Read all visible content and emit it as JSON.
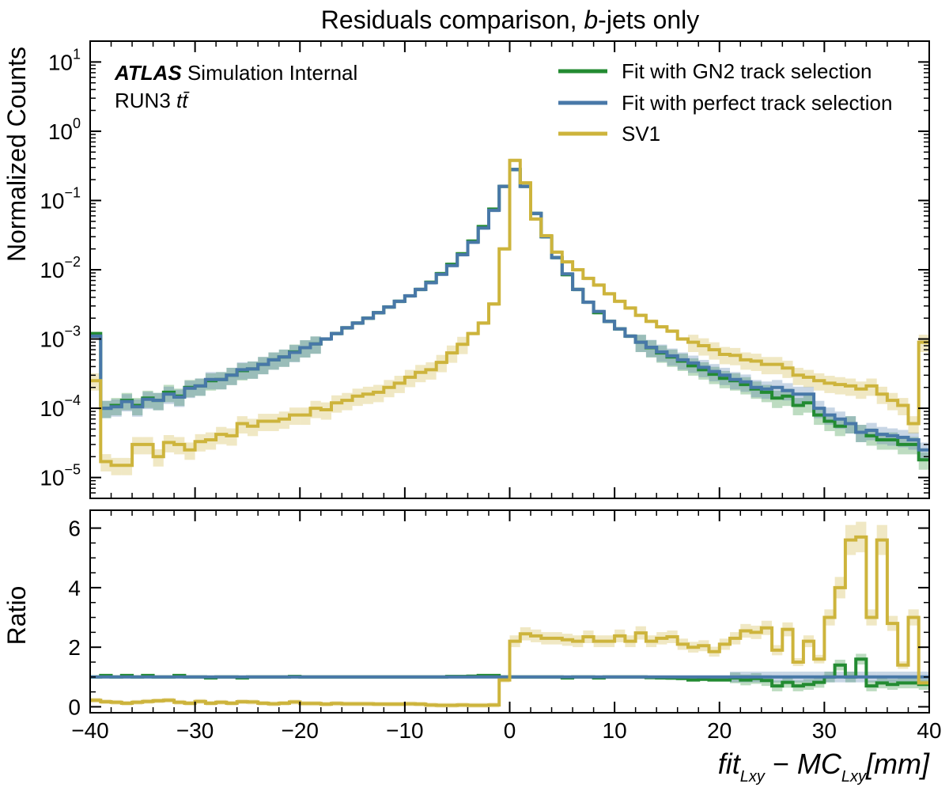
{
  "chart_data": {
    "type": "line",
    "title_parts": {
      "pre": "Residuals comparison, ",
      "italic": "b",
      "post": "-jets only"
    },
    "atlas": {
      "bold": "ATLAS",
      "text": " Simulation Internal",
      "sample_pre": "RUN3 ",
      "sample_math": "tt̄"
    },
    "xlabel_parts": {
      "a": "fit",
      "a_sub": "Lxy",
      "mid": " − ",
      "b": "MC",
      "b_sub": "Lxy",
      "unit": "[mm]"
    },
    "xlim": [
      -40,
      40
    ],
    "x_ticks": [
      "−40",
      "−30",
      "−20",
      "−10",
      "0",
      "10",
      "20",
      "30",
      "40"
    ],
    "top_panel": {
      "ylabel": "Normalized Counts",
      "scale": "log",
      "ylim": [
        5e-06,
        20
      ],
      "y_tick_values": [
        1e-05,
        0.0001,
        0.001,
        0.01,
        0.1,
        1,
        10
      ],
      "y_tick_exponents": [
        "−5",
        "−4",
        "−3",
        "−2",
        "−1",
        "0",
        "1"
      ],
      "y_tick_base": "10"
    },
    "ratio_panel": {
      "ylabel": "Ratio",
      "ylim": [
        -0.2,
        6.6
      ],
      "y_ticks": [
        "0",
        "2",
        "4",
        "6"
      ]
    },
    "legend_position": "top-right",
    "colors": {
      "gn2": "#238b32",
      "perfect": "#4878a8",
      "sv1": "#cdb43c"
    },
    "bin_edges": [
      -40,
      -39,
      -38,
      -37,
      -36,
      -35,
      -34,
      -33,
      -32,
      -31,
      -30,
      -29,
      -28,
      -27,
      -26,
      -25,
      -24,
      -23,
      -22,
      -21,
      -20,
      -19,
      -18,
      -17,
      -16,
      -15,
      -14,
      -13,
      -12,
      -11,
      -10,
      -9,
      -8,
      -7,
      -6,
      -5,
      -4,
      -3,
      -2,
      -1,
      0,
      1,
      2,
      3,
      4,
      5,
      6,
      7,
      8,
      9,
      10,
      11,
      12,
      13,
      14,
      15,
      16,
      17,
      18,
      19,
      20,
      21,
      22,
      23,
      24,
      25,
      26,
      27,
      28,
      29,
      30,
      31,
      32,
      33,
      34,
      35,
      36,
      37,
      38,
      39,
      40
    ],
    "series": [
      {
        "name": "Fit with GN2 track selection",
        "key": "gn2",
        "values": [
          0.0012,
          0.0001,
          0.00011,
          0.00013,
          0.00011,
          0.00014,
          0.00013,
          0.00017,
          0.00015,
          0.0002,
          0.00021,
          0.00025,
          0.00026,
          0.0003,
          0.00035,
          0.00037,
          0.00043,
          0.0005,
          0.00055,
          0.00065,
          0.00075,
          0.00085,
          0.001,
          0.0012,
          0.00145,
          0.0017,
          0.002,
          0.0024,
          0.0029,
          0.0035,
          0.0042,
          0.0052,
          0.0066,
          0.0088,
          0.012,
          0.017,
          0.026,
          0.042,
          0.075,
          0.16,
          0.28,
          0.16,
          0.065,
          0.03,
          0.015,
          0.0085,
          0.0052,
          0.0034,
          0.0024,
          0.0018,
          0.0014,
          0.0011,
          0.0009,
          0.00075,
          0.00063,
          0.00055,
          0.00048,
          0.00041,
          0.00036,
          0.00031,
          0.00027,
          0.00025,
          0.00022,
          0.00019,
          0.00017,
          0.00014,
          0.00015,
          0.00011,
          0.00012,
          8e-05,
          6.5e-05,
          5.5e-05,
          6e-05,
          4.5e-05,
          4e-05,
          3.5e-05,
          3.5e-05,
          3e-05,
          3e-05,
          1.8e-05
        ],
        "ratio": [
          1.0,
          1.05,
          1.0,
          1.05,
          1.0,
          1.05,
          1.0,
          1.0,
          1.05,
          1.0,
          1.0,
          0.97,
          1.0,
          1.0,
          0.97,
          1.0,
          1.0,
          1.0,
          1.0,
          1.02,
          1.0,
          1.0,
          1.0,
          1.0,
          1.0,
          1.0,
          1.0,
          1.0,
          1.0,
          1.0,
          1.0,
          1.0,
          1.0,
          1.0,
          1.02,
          1.02,
          1.03,
          1.05,
          1.05,
          1.0,
          1.0,
          1.0,
          1.0,
          1.0,
          1.0,
          0.97,
          1.0,
          1.0,
          0.97,
          1.0,
          1.0,
          1.0,
          1.0,
          0.98,
          0.97,
          0.96,
          0.95,
          0.9,
          0.92,
          0.9,
          0.9,
          0.97,
          0.9,
          0.95,
          0.88,
          0.7,
          0.82,
          0.7,
          0.75,
          0.82,
          1.0,
          1.4,
          1.0,
          1.6,
          0.7,
          0.8,
          0.75,
          0.8,
          0.8,
          0.75
        ]
      },
      {
        "name": "Fit with perfect track selection",
        "key": "perfect",
        "values": [
          0.0011,
          0.0001,
          0.000105,
          0.000125,
          0.000105,
          0.000135,
          0.00013,
          0.00016,
          0.000145,
          0.000195,
          0.00021,
          0.00026,
          0.00026,
          0.0003,
          0.00036,
          0.00037,
          0.00043,
          0.0005,
          0.00055,
          0.00064,
          0.00075,
          0.00085,
          0.001,
          0.0012,
          0.00145,
          0.0017,
          0.002,
          0.0024,
          0.0029,
          0.0035,
          0.0042,
          0.0052,
          0.0065,
          0.0086,
          0.0115,
          0.0165,
          0.025,
          0.04,
          0.072,
          0.16,
          0.28,
          0.16,
          0.065,
          0.03,
          0.015,
          0.0087,
          0.0052,
          0.0034,
          0.0025,
          0.0018,
          0.0014,
          0.0011,
          0.0009,
          0.00076,
          0.00065,
          0.00057,
          0.0005,
          0.00045,
          0.00039,
          0.00034,
          0.0003,
          0.00026,
          0.00024,
          0.0002,
          0.00019,
          0.0002,
          0.00018,
          0.00016,
          0.00016,
          0.0001,
          8e-05,
          7e-05,
          6e-05,
          4.5e-05,
          4.8e-05,
          4.2e-05,
          4e-05,
          3.8e-05,
          3.5e-05,
          2.5e-05
        ],
        "ratio": [
          1.0,
          1.0,
          1.0,
          1.0,
          1.0,
          1.0,
          1.0,
          1.0,
          1.0,
          1.0,
          1.0,
          1.0,
          1.0,
          1.0,
          1.0,
          1.0,
          1.0,
          1.0,
          1.0,
          1.0,
          1.0,
          1.0,
          1.0,
          1.0,
          1.0,
          1.0,
          1.0,
          1.0,
          1.0,
          1.0,
          1.0,
          1.0,
          1.0,
          1.0,
          1.0,
          1.0,
          1.0,
          1.0,
          1.0,
          1.0,
          1.0,
          1.0,
          1.0,
          1.0,
          1.0,
          1.0,
          1.0,
          1.0,
          1.0,
          1.0,
          1.0,
          1.0,
          1.0,
          1.0,
          1.0,
          1.0,
          1.0,
          1.0,
          1.0,
          1.0,
          1.0,
          1.0,
          1.0,
          1.0,
          1.0,
          1.0,
          1.0,
          1.0,
          1.0,
          1.0,
          1.0,
          1.0,
          1.0,
          1.0,
          1.0,
          1.0,
          1.0,
          1.0,
          1.0,
          1.0
        ]
      },
      {
        "name": "SV1",
        "key": "sv1",
        "values": [
          0.00025,
          1.7e-05,
          1.5e-05,
          1.5e-05,
          3e-05,
          3e-05,
          2e-05,
          3.2e-05,
          3e-05,
          2.5e-05,
          3.3e-05,
          3.5e-05,
          4.2e-05,
          4e-05,
          6e-05,
          5.5e-05,
          6.5e-05,
          6.5e-05,
          7e-05,
          8e-05,
          8e-05,
          0.0001,
          9.5e-05,
          0.00012,
          0.00013,
          0.00015,
          0.00016,
          0.00017,
          0.0002,
          0.00023,
          0.00028,
          0.00033,
          0.00036,
          0.00046,
          0.00063,
          0.00084,
          0.0012,
          0.0017,
          0.0032,
          0.02,
          0.38,
          0.18,
          0.054,
          0.031,
          0.018,
          0.013,
          0.01,
          0.0075,
          0.006,
          0.0045,
          0.0035,
          0.0028,
          0.0022,
          0.0018,
          0.0015,
          0.0013,
          0.001,
          0.0009,
          0.0008,
          0.0007,
          0.0006,
          0.00058,
          0.0005,
          0.00048,
          0.00043,
          0.00043,
          0.00038,
          0.0003,
          0.00028,
          0.00025,
          0.00023,
          0.00022,
          0.00021,
          0.00019,
          0.00021,
          0.00016,
          0.00013,
          0.00011,
          6e-05,
          0.0009
        ],
        "ratio": [
          0.22,
          0.17,
          0.15,
          0.12,
          0.15,
          0.18,
          0.2,
          0.22,
          0.15,
          0.12,
          0.18,
          0.12,
          0.15,
          0.12,
          0.17,
          0.16,
          0.12,
          0.1,
          0.12,
          0.16,
          0.11,
          0.11,
          0.09,
          0.11,
          0.1,
          0.1,
          0.1,
          0.09,
          0.09,
          0.09,
          0.1,
          0.09,
          0.06,
          0.05,
          0.05,
          0.06,
          0.05,
          0.05,
          0.06,
          0.9,
          2.2,
          2.45,
          2.38,
          2.3,
          2.3,
          2.25,
          2.2,
          2.35,
          2.2,
          2.2,
          2.38,
          2.2,
          2.48,
          2.2,
          2.3,
          2.35,
          2.1,
          2.0,
          2.05,
          1.85,
          2.1,
          2.3,
          2.55,
          2.5,
          2.65,
          1.9,
          2.6,
          1.5,
          2.2,
          1.6,
          3.0,
          4.0,
          5.6,
          5.7,
          3.0,
          5.6,
          2.8,
          1.4,
          3.0,
          0.8
        ]
      }
    ]
  }
}
